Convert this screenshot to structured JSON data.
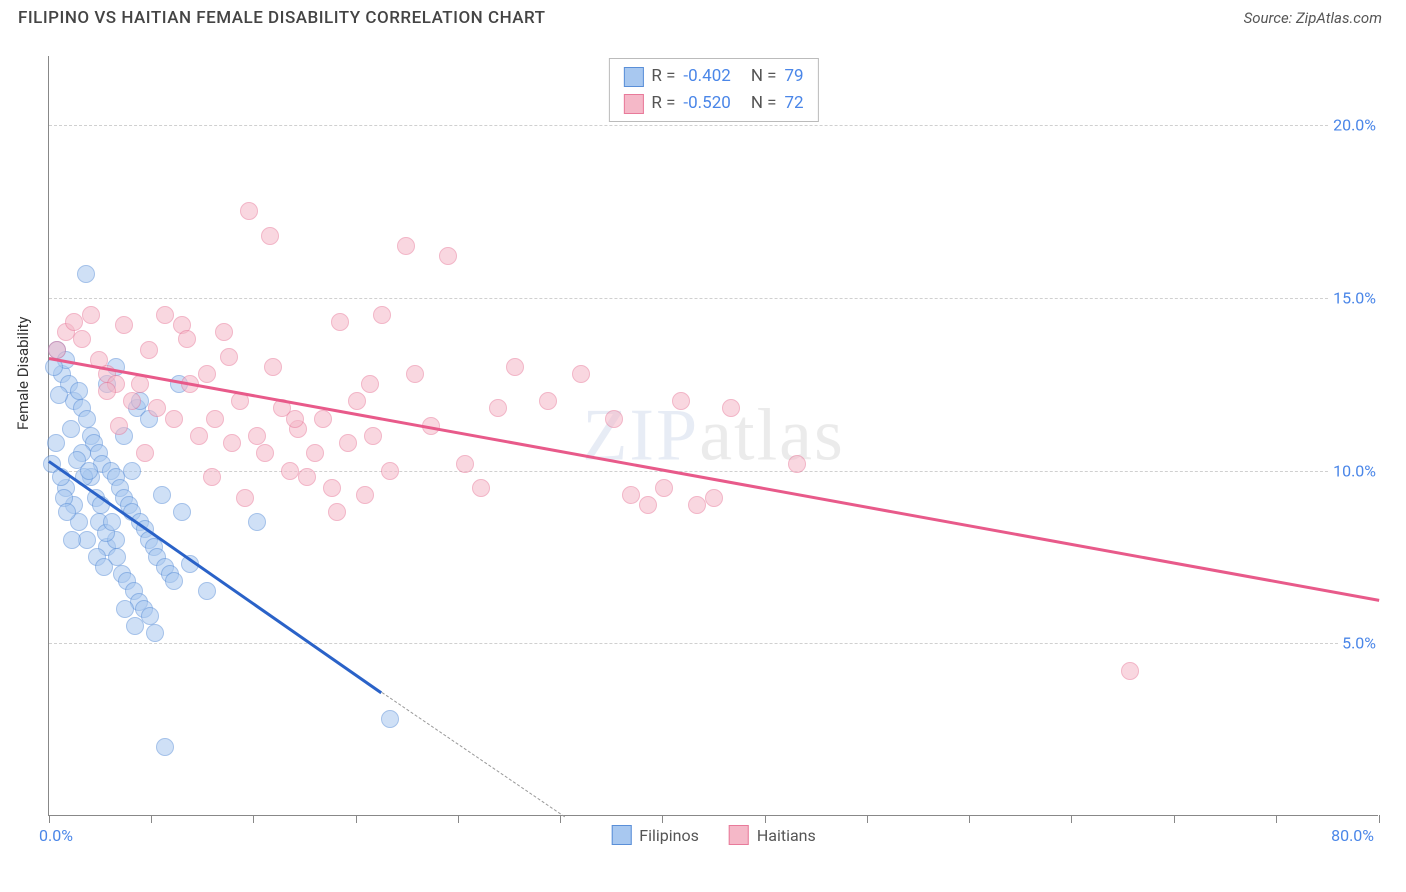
{
  "title": "FILIPINO VS HAITIAN FEMALE DISABILITY CORRELATION CHART",
  "source_label": "Source: ZipAtlas.com",
  "watermark_zip": "ZIP",
  "watermark_atlas": "atlas",
  "yaxis_title": "Female Disability",
  "chart": {
    "type": "scatter",
    "xlim": [
      0,
      80
    ],
    "ylim": [
      0,
      22
    ],
    "x_min_label": "0.0%",
    "x_max_label": "80.0%",
    "x_ticks": [
      0,
      6.15,
      12.3,
      18.45,
      24.6,
      30.75,
      36.9,
      43.05,
      49.2,
      55.35,
      61.5,
      67.65,
      73.8,
      80
    ],
    "y_gridlines": [
      {
        "v": 5,
        "label": "5.0%"
      },
      {
        "v": 10,
        "label": "10.0%"
      },
      {
        "v": 15,
        "label": "15.0%"
      },
      {
        "v": 20,
        "label": "20.0%"
      }
    ],
    "background": "#ffffff",
    "grid_color": "#d0d0d0",
    "axis_color": "#888888",
    "tick_label_color": "#4a86e8",
    "marker_radius": 9,
    "marker_opacity": 0.55,
    "series": [
      {
        "name": "Filipinos",
        "fill": "#a8c8f0",
        "stroke": "#5a8fd8",
        "trend_color": "#2a62c8",
        "trend_width": 2.5,
        "R": "-0.402",
        "N": "79",
        "trend": {
          "x1": 0,
          "y1": 10.3,
          "x2": 20,
          "y2": 3.6,
          "dash_x2": 31,
          "dash_y2": 0
        },
        "points": [
          [
            0.5,
            13.5
          ],
          [
            0.8,
            12.8
          ],
          [
            1.0,
            13.2
          ],
          [
            1.2,
            12.5
          ],
          [
            1.5,
            12.0
          ],
          [
            1.8,
            12.3
          ],
          [
            2.0,
            11.8
          ],
          [
            2.2,
            15.7
          ],
          [
            2.3,
            11.5
          ],
          [
            2.5,
            11.0
          ],
          [
            2.7,
            10.8
          ],
          [
            3.0,
            10.5
          ],
          [
            3.2,
            10.2
          ],
          [
            3.5,
            12.5
          ],
          [
            3.7,
            10.0
          ],
          [
            4.0,
            9.8
          ],
          [
            4.3,
            9.5
          ],
          [
            4.5,
            9.2
          ],
          [
            4.8,
            9.0
          ],
          [
            5.0,
            8.8
          ],
          [
            5.3,
            11.8
          ],
          [
            5.5,
            8.5
          ],
          [
            5.8,
            8.3
          ],
          [
            6.0,
            8.0
          ],
          [
            6.3,
            7.8
          ],
          [
            6.5,
            7.5
          ],
          [
            6.8,
            9.3
          ],
          [
            7.0,
            7.2
          ],
          [
            7.3,
            7.0
          ],
          [
            7.5,
            6.8
          ],
          [
            7.8,
            12.5
          ],
          [
            8.0,
            8.8
          ],
          [
            1.0,
            9.5
          ],
          [
            1.5,
            9.0
          ],
          [
            2.0,
            10.5
          ],
          [
            2.5,
            9.8
          ],
          [
            3.0,
            8.5
          ],
          [
            3.5,
            7.8
          ],
          [
            4.0,
            8.0
          ],
          [
            4.5,
            11.0
          ],
          [
            5.0,
            10.0
          ],
          [
            0.3,
            13.0
          ],
          [
            0.6,
            12.2
          ],
          [
            1.3,
            11.2
          ],
          [
            1.7,
            10.3
          ],
          [
            2.1,
            9.8
          ],
          [
            2.4,
            10.0
          ],
          [
            2.8,
            9.2
          ],
          [
            3.1,
            9.0
          ],
          [
            3.4,
            8.2
          ],
          [
            3.8,
            8.5
          ],
          [
            4.1,
            7.5
          ],
          [
            4.4,
            7.0
          ],
          [
            4.7,
            6.8
          ],
          [
            5.1,
            6.5
          ],
          [
            5.4,
            6.2
          ],
          [
            5.7,
            6.0
          ],
          [
            6.1,
            5.8
          ],
          [
            1.8,
            8.5
          ],
          [
            2.3,
            8.0
          ],
          [
            2.9,
            7.5
          ],
          [
            3.3,
            7.2
          ],
          [
            4.6,
            6.0
          ],
          [
            5.2,
            5.5
          ],
          [
            6.4,
            5.3
          ],
          [
            7.0,
            2.0
          ],
          [
            4.0,
            13.0
          ],
          [
            5.5,
            12.0
          ],
          [
            6.0,
            11.5
          ],
          [
            0.2,
            10.2
          ],
          [
            0.4,
            10.8
          ],
          [
            0.7,
            9.8
          ],
          [
            0.9,
            9.2
          ],
          [
            1.1,
            8.8
          ],
          [
            1.4,
            8.0
          ],
          [
            12.5,
            8.5
          ],
          [
            8.5,
            7.3
          ],
          [
            9.5,
            6.5
          ],
          [
            20.5,
            2.8
          ]
        ]
      },
      {
        "name": "Haitians",
        "fill": "#f5b8c8",
        "stroke": "#e87a9a",
        "trend_color": "#e85a8a",
        "trend_width": 2.5,
        "R": "-0.520",
        "N": "72",
        "trend": {
          "x1": 0,
          "y1": 13.3,
          "x2": 80,
          "y2": 6.3
        },
        "points": [
          [
            0.5,
            13.5
          ],
          [
            1.0,
            14.0
          ],
          [
            1.5,
            14.3
          ],
          [
            2.0,
            13.8
          ],
          [
            2.5,
            14.5
          ],
          [
            3.0,
            13.2
          ],
          [
            3.5,
            12.8
          ],
          [
            4.0,
            12.5
          ],
          [
            4.5,
            14.2
          ],
          [
            5.0,
            12.0
          ],
          [
            5.5,
            12.5
          ],
          [
            6.0,
            13.5
          ],
          [
            6.5,
            11.8
          ],
          [
            7.0,
            14.5
          ],
          [
            7.5,
            11.5
          ],
          [
            8.0,
            14.2
          ],
          [
            8.5,
            12.5
          ],
          [
            9.0,
            11.0
          ],
          [
            9.5,
            12.8
          ],
          [
            10.0,
            11.5
          ],
          [
            10.5,
            14.0
          ],
          [
            11.0,
            10.8
          ],
          [
            11.5,
            12.0
          ],
          [
            12.0,
            17.5
          ],
          [
            12.5,
            11.0
          ],
          [
            13.0,
            10.5
          ],
          [
            13.5,
            13.0
          ],
          [
            14.0,
            11.8
          ],
          [
            14.5,
            10.0
          ],
          [
            15.0,
            11.2
          ],
          [
            15.5,
            9.8
          ],
          [
            16.0,
            10.5
          ],
          [
            16.5,
            11.5
          ],
          [
            17.0,
            9.5
          ],
          [
            17.5,
            14.3
          ],
          [
            18.0,
            10.8
          ],
          [
            18.5,
            12.0
          ],
          [
            19.0,
            9.3
          ],
          [
            19.5,
            11.0
          ],
          [
            20.0,
            14.5
          ],
          [
            20.5,
            10.0
          ],
          [
            21.5,
            16.5
          ],
          [
            22.0,
            12.8
          ],
          [
            23.0,
            11.3
          ],
          [
            24.0,
            16.2
          ],
          [
            25.0,
            10.2
          ],
          [
            26.0,
            9.5
          ],
          [
            27.0,
            11.8
          ],
          [
            28.0,
            13.0
          ],
          [
            30.0,
            12.0
          ],
          [
            32.0,
            12.8
          ],
          [
            34.0,
            11.5
          ],
          [
            3.5,
            12.3
          ],
          [
            4.2,
            11.3
          ],
          [
            5.8,
            10.5
          ],
          [
            8.3,
            13.8
          ],
          [
            9.8,
            9.8
          ],
          [
            10.8,
            13.3
          ],
          [
            11.8,
            9.2
          ],
          [
            13.3,
            16.8
          ],
          [
            17.3,
            8.8
          ],
          [
            37.0,
            9.5
          ],
          [
            38.0,
            12.0
          ],
          [
            41.0,
            11.8
          ],
          [
            39.0,
            9.0
          ],
          [
            40.0,
            9.2
          ],
          [
            45.0,
            10.2
          ],
          [
            65.0,
            4.2
          ],
          [
            36.0,
            9.0
          ],
          [
            35.0,
            9.3
          ],
          [
            14.8,
            11.5
          ],
          [
            19.3,
            12.5
          ]
        ]
      }
    ],
    "stats_labels": {
      "R": "R =",
      "N": "N ="
    },
    "bottom_legend": [
      "Filipinos",
      "Haitians"
    ]
  }
}
